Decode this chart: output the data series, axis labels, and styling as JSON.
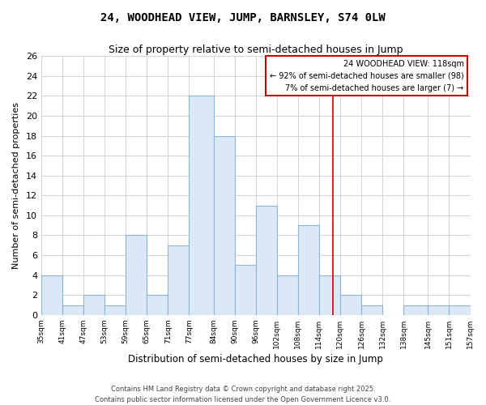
{
  "title": "24, WOODHEAD VIEW, JUMP, BARNSLEY, S74 0LW",
  "subtitle": "Size of property relative to semi-detached houses in Jump",
  "xlabel": "Distribution of semi-detached houses by size in Jump",
  "ylabel": "Number of semi-detached properties",
  "bar_color": "#dce8f5",
  "bar_edgecolor": "#8ab4d4",
  "grid_color": "#cccccc",
  "background_color": "#ffffff",
  "bins": [
    35,
    41,
    47,
    53,
    59,
    65,
    71,
    77,
    84,
    90,
    96,
    102,
    108,
    114,
    120,
    126,
    132,
    138,
    145,
    151,
    157
  ],
  "bin_labels": [
    "35sqm",
    "41sqm",
    "47sqm",
    "53sqm",
    "59sqm",
    "65sqm",
    "71sqm",
    "77sqm",
    "84sqm",
    "90sqm",
    "96sqm",
    "102sqm",
    "108sqm",
    "114sqm",
    "120sqm",
    "126sqm",
    "132sqm",
    "138sqm",
    "145sqm",
    "151sqm",
    "157sqm"
  ],
  "counts": [
    4,
    1,
    2,
    1,
    8,
    2,
    7,
    22,
    18,
    5,
    11,
    4,
    9,
    4,
    2,
    1,
    0,
    1,
    1,
    1
  ],
  "ylim": [
    0,
    26
  ],
  "yticks": [
    0,
    2,
    4,
    6,
    8,
    10,
    12,
    14,
    16,
    18,
    20,
    22,
    24,
    26
  ],
  "vline_x": 118,
  "vline_color": "#cc0000",
  "annotation_title": "24 WOODHEAD VIEW: 118sqm",
  "annotation_line1": "← 92% of semi-detached houses are smaller (98)",
  "annotation_line2": "7% of semi-detached houses are larger (7) →",
  "annotation_box_color": "#ffffff",
  "annotation_border_color": "#cc0000",
  "footer1": "Contains HM Land Registry data © Crown copyright and database right 2025.",
  "footer2": "Contains public sector information licensed under the Open Government Licence v3.0."
}
